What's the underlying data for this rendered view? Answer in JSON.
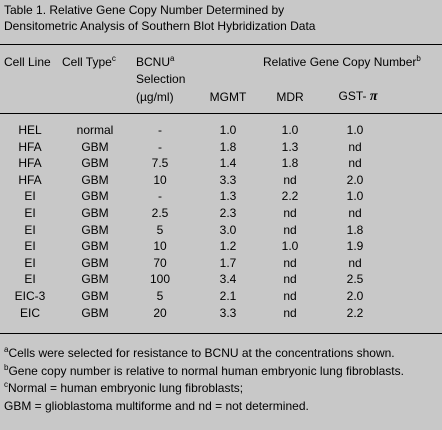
{
  "title": [
    "Table 1.  Relative Gene Copy Number Determined by",
    "Densitometric Analysis of Southern Blot Hybridization Data"
  ],
  "header": {
    "cell_line": "Cell Line",
    "cell_type": {
      "text": "Cell Type",
      "sup": "c"
    },
    "bcnu": {
      "lines": [
        "BCNU",
        "Selection",
        "(µg/ml)"
      ],
      "sup": "a"
    },
    "group": {
      "text": "Relative Gene Copy Number",
      "sup": "b"
    },
    "mgmt": "MGMT",
    "mdr": "MDR",
    "gst": {
      "text": "GST-",
      "symbol": "π"
    }
  },
  "rows": [
    [
      "HEL",
      "normal",
      "-",
      "1.0",
      "1.0",
      "1.0"
    ],
    [
      "HFA",
      "GBM",
      "-",
      "1.8",
      "1.3",
      "nd"
    ],
    [
      "HFA",
      "GBM",
      "7.5",
      "1.4",
      "1.8",
      "nd"
    ],
    [
      "HFA",
      "GBM",
      "10",
      "3.3",
      "nd",
      "2.0"
    ],
    [
      "EI",
      "GBM",
      "-",
      "1.3",
      "2.2",
      "1.0"
    ],
    [
      "EI",
      "GBM",
      "2.5",
      "2.3",
      "nd",
      "nd"
    ],
    [
      "EI",
      "GBM",
      "5",
      "3.0",
      "nd",
      "1.8"
    ],
    [
      "EI",
      "GBM",
      "10",
      "1.2",
      "1.0",
      "1.9"
    ],
    [
      "EI",
      "GBM",
      "70",
      "1.7",
      "nd",
      "nd"
    ],
    [
      "EI",
      "GBM",
      "100",
      "3.4",
      "nd",
      "2.5"
    ],
    [
      "EIC-3",
      "GBM",
      "5",
      "2.1",
      "nd",
      "2.0"
    ],
    [
      "EIC",
      "GBM",
      "20",
      "3.3",
      "nd",
      "2.2"
    ]
  ],
  "footnotes": [
    {
      "mark": "a",
      "text": "Cells were selected for resistance to BCNU at the concentrations shown."
    },
    {
      "mark": "b",
      "text": "Gene copy number is relative to normal human embryonic lung fibroblasts."
    },
    {
      "mark": "c",
      "text": "Normal = human embryonic lung fibroblasts;"
    },
    {
      "text": "GBM = glioblastoma multiforme and nd = not determined."
    }
  ]
}
